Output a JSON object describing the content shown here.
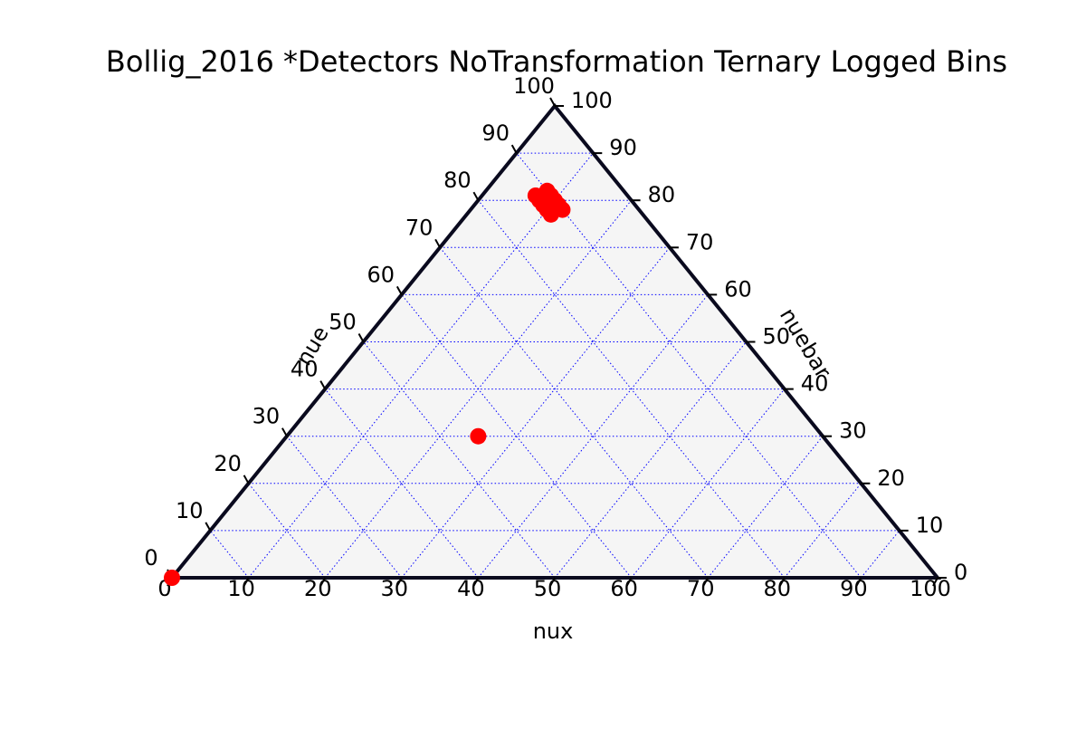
{
  "chart_data": {
    "type": "scatter",
    "subtype": "ternary",
    "title": "Bollig_2016 *Detectors NoTransformation Ternary Logged Bins",
    "axes": {
      "bottom": {
        "label": "nux",
        "ticks": [
          "0",
          "10",
          "20",
          "30",
          "40",
          "50",
          "60",
          "70",
          "80",
          "90",
          "100"
        ]
      },
      "left": {
        "label": "nue",
        "ticks": [
          "0",
          "10",
          "20",
          "30",
          "40",
          "50",
          "60",
          "70",
          "80",
          "90",
          "100"
        ]
      },
      "right": {
        "label": "nuebar",
        "ticks": [
          "0",
          "10",
          "20",
          "30",
          "40",
          "50",
          "60",
          "70",
          "80",
          "90",
          "100"
        ]
      }
    },
    "scale": [
      0,
      100
    ],
    "gridlines_every": 10,
    "grid": true,
    "colors": {
      "points": "#ff0000",
      "grid": "#0000ff",
      "triangle_fill": "#f5f5f5",
      "triangle_edge": "#0a0a1e"
    },
    "points": [
      {
        "nux": 0,
        "nue": 0,
        "nuebar": 100
      },
      {
        "nux": 25,
        "nue": 30,
        "nuebar": 45
      },
      {
        "nux": 8,
        "nue": 82,
        "nuebar": 10
      },
      {
        "nux": 9,
        "nue": 81,
        "nuebar": 10
      },
      {
        "nux": 10,
        "nue": 80,
        "nuebar": 10
      },
      {
        "nux": 11,
        "nue": 79,
        "nuebar": 10
      },
      {
        "nux": 12,
        "nue": 78,
        "nuebar": 10
      },
      {
        "nux": 7,
        "nue": 81,
        "nuebar": 12
      },
      {
        "nux": 8,
        "nue": 80,
        "nuebar": 12
      },
      {
        "nux": 9,
        "nue": 79,
        "nuebar": 12
      },
      {
        "nux": 10,
        "nue": 78,
        "nuebar": 12
      },
      {
        "nux": 11,
        "nue": 77,
        "nuebar": 12
      }
    ]
  }
}
